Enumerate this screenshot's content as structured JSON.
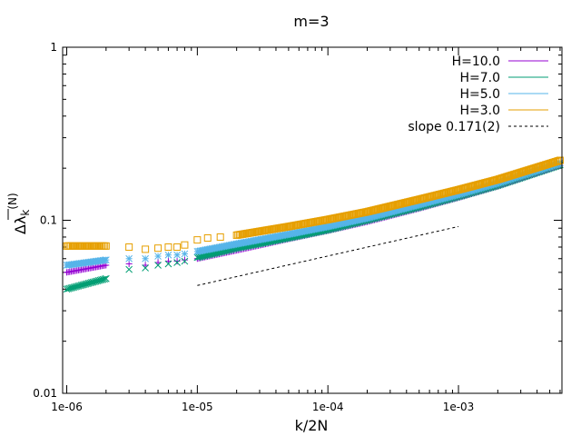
{
  "chart_data": {
    "type": "scatter",
    "title": "m=3",
    "xlabel": "k/2N",
    "ylabel": "Δλ",
    "ylabel_sub": "k",
    "ylabel_sup": "(N)",
    "xscale": "log",
    "yscale": "log",
    "xlim": [
      9.3e-07,
      0.0062
    ],
    "ylim": [
      0.01,
      1
    ],
    "x_ticks": [
      {
        "value": 1e-06,
        "label": "1e-06"
      },
      {
        "value": 1e-05,
        "label": "1e-05"
      },
      {
        "value": 0.0001,
        "label": "1e-04"
      },
      {
        "value": 0.001,
        "label": "1e-03"
      }
    ],
    "y_ticks": [
      {
        "value": 0.01,
        "label": "0.01"
      },
      {
        "value": 0.1,
        "label": "0.1"
      },
      {
        "value": 1,
        "label": "1"
      }
    ],
    "legend_position": "top-right",
    "series": [
      {
        "name": "H=10.0",
        "color": "#9400d3",
        "marker": "plus",
        "x": [
          1e-06,
          2e-06,
          3e-06,
          4e-06,
          5e-06,
          6e-06,
          7e-06,
          8e-06,
          1e-05,
          2e-05,
          5e-05,
          0.0001,
          0.0002,
          0.0005,
          0.001,
          0.002,
          0.006
        ],
        "y": [
          0.05,
          0.055,
          0.056,
          0.055,
          0.057,
          0.058,
          0.058,
          0.059,
          0.06,
          0.067,
          0.078,
          0.087,
          0.098,
          0.117,
          0.135,
          0.157,
          0.207
        ]
      },
      {
        "name": "H=7.0",
        "color": "#009e73",
        "marker": "x",
        "x": [
          1e-06,
          2e-06,
          3e-06,
          4e-06,
          5e-06,
          6e-06,
          7e-06,
          8e-06,
          1e-05,
          2e-05,
          5e-05,
          0.0001,
          0.0002,
          0.0005,
          0.001,
          0.002,
          0.006
        ],
        "y": [
          0.04,
          0.046,
          0.052,
          0.053,
          0.055,
          0.056,
          0.057,
          0.058,
          0.061,
          0.069,
          0.079,
          0.088,
          0.1,
          0.119,
          0.137,
          0.159,
          0.209
        ]
      },
      {
        "name": "H=5.0",
        "color": "#56b4e9",
        "marker": "star",
        "x": [
          1e-06,
          2e-06,
          3e-06,
          4e-06,
          5e-06,
          6e-06,
          7e-06,
          8e-06,
          1e-05,
          2e-05,
          5e-05,
          0.0001,
          0.0002,
          0.0005,
          0.001,
          0.002,
          0.006
        ],
        "y": [
          0.055,
          0.059,
          0.06,
          0.06,
          0.062,
          0.063,
          0.063,
          0.064,
          0.066,
          0.073,
          0.083,
          0.092,
          0.103,
          0.123,
          0.141,
          0.164,
          0.214
        ]
      },
      {
        "name": "H=3.0",
        "color": "#e69f00",
        "marker": "square",
        "x": [
          1e-06,
          2e-06,
          3e-06,
          4e-06,
          5e-06,
          6e-06,
          7e-06,
          8e-06,
          1e-05,
          1.2e-05,
          1.5e-05,
          2e-05,
          5e-05,
          0.0001,
          0.0002,
          0.0005,
          0.001,
          0.002,
          0.006
        ],
        "y": [
          0.071,
          0.071,
          0.07,
          0.068,
          0.069,
          0.07,
          0.07,
          0.072,
          0.077,
          0.079,
          0.08,
          0.082,
          0.092,
          0.101,
          0.112,
          0.132,
          0.15,
          0.172,
          0.222
        ]
      }
    ],
    "reference_line": {
      "name": "slope 0.171(2)",
      "color": "#000000",
      "style": "dashed",
      "x": [
        1e-05,
        0.001
      ],
      "y": [
        0.042,
        0.092
      ]
    }
  }
}
